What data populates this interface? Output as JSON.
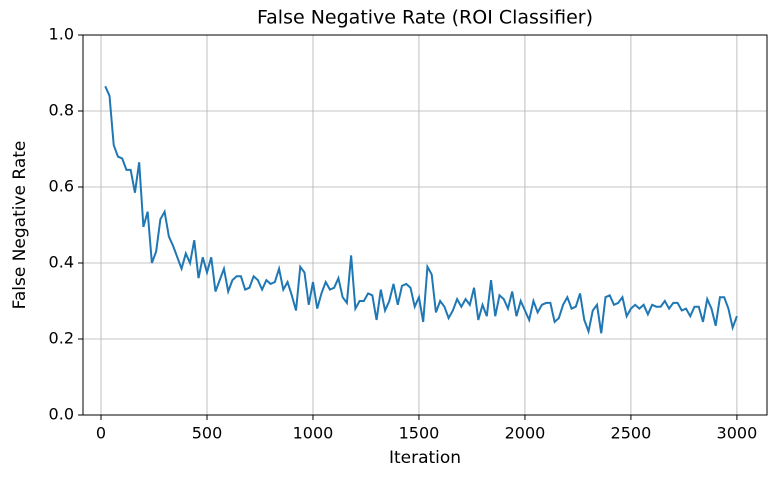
{
  "chart_data": {
    "type": "line",
    "title": "False Negative Rate (ROI Classifier)",
    "x_label": "Iteration",
    "y_label": "False Negative Rate",
    "x": [
      20,
      40,
      60,
      80,
      100,
      120,
      140,
      160,
      180,
      200,
      220,
      240,
      260,
      280,
      300,
      320,
      340,
      360,
      380,
      400,
      420,
      440,
      460,
      480,
      500,
      520,
      540,
      560,
      580,
      600,
      620,
      640,
      660,
      680,
      700,
      720,
      740,
      760,
      780,
      800,
      820,
      840,
      860,
      880,
      900,
      920,
      940,
      960,
      980,
      1000,
      1020,
      1040,
      1060,
      1080,
      1100,
      1120,
      1140,
      1160,
      1180,
      1200,
      1220,
      1240,
      1260,
      1280,
      1300,
      1320,
      1340,
      1360,
      1380,
      1400,
      1420,
      1440,
      1460,
      1480,
      1500,
      1520,
      1540,
      1560,
      1580,
      1600,
      1620,
      1640,
      1660,
      1680,
      1700,
      1720,
      1740,
      1760,
      1780,
      1800,
      1820,
      1840,
      1860,
      1880,
      1900,
      1920,
      1940,
      1960,
      1980,
      2000,
      2020,
      2040,
      2060,
      2080,
      2100,
      2120,
      2140,
      2160,
      2180,
      2200,
      2220,
      2240,
      2260,
      2280,
      2300,
      2320,
      2340,
      2360,
      2380,
      2400,
      2420,
      2440,
      2460,
      2480,
      2500,
      2520,
      2540,
      2560,
      2580,
      2600,
      2620,
      2640,
      2660,
      2680,
      2700,
      2720,
      2740,
      2760,
      2780,
      2800,
      2820,
      2840,
      2860,
      2880,
      2900,
      2920,
      2940,
      2960,
      2980,
      3000
    ],
    "series": [
      {
        "name": "False Negative Rate",
        "color": "#1f77b4",
        "values": [
          0.865,
          0.84,
          0.71,
          0.68,
          0.675,
          0.645,
          0.645,
          0.585,
          0.665,
          0.495,
          0.535,
          0.4,
          0.43,
          0.515,
          0.535,
          0.47,
          0.445,
          0.415,
          0.385,
          0.425,
          0.4,
          0.46,
          0.36,
          0.415,
          0.375,
          0.415,
          0.325,
          0.355,
          0.385,
          0.325,
          0.355,
          0.365,
          0.365,
          0.33,
          0.335,
          0.365,
          0.355,
          0.33,
          0.355,
          0.345,
          0.35,
          0.385,
          0.33,
          0.35,
          0.315,
          0.275,
          0.39,
          0.375,
          0.29,
          0.35,
          0.28,
          0.32,
          0.35,
          0.33,
          0.335,
          0.36,
          0.31,
          0.295,
          0.42,
          0.28,
          0.3,
          0.3,
          0.32,
          0.315,
          0.25,
          0.33,
          0.275,
          0.3,
          0.345,
          0.29,
          0.34,
          0.345,
          0.335,
          0.285,
          0.31,
          0.245,
          0.39,
          0.37,
          0.27,
          0.3,
          0.285,
          0.255,
          0.275,
          0.305,
          0.285,
          0.305,
          0.29,
          0.335,
          0.25,
          0.29,
          0.26,
          0.355,
          0.26,
          0.315,
          0.305,
          0.28,
          0.325,
          0.26,
          0.3,
          0.275,
          0.25,
          0.3,
          0.27,
          0.29,
          0.295,
          0.295,
          0.245,
          0.255,
          0.29,
          0.31,
          0.28,
          0.285,
          0.32,
          0.25,
          0.22,
          0.275,
          0.29,
          0.215,
          0.31,
          0.315,
          0.29,
          0.295,
          0.31,
          0.26,
          0.28,
          0.29,
          0.28,
          0.29,
          0.265,
          0.29,
          0.285,
          0.285,
          0.3,
          0.28,
          0.295,
          0.295,
          0.275,
          0.28,
          0.26,
          0.285,
          0.285,
          0.245,
          0.305,
          0.28,
          0.235,
          0.31,
          0.31,
          0.28,
          0.23,
          0.26
        ]
      }
    ],
    "xlim": [
      -85,
      3142
    ],
    "ylim": [
      0,
      1
    ],
    "xticks": [
      0,
      500,
      1000,
      1500,
      2000,
      2500,
      3000
    ],
    "yticks": [
      {
        "value": 0,
        "label": "0.0"
      },
      0.2,
      0.4,
      0.6,
      0.8,
      {
        "value": 1,
        "label": "1.0"
      }
    ],
    "grid": true
  }
}
